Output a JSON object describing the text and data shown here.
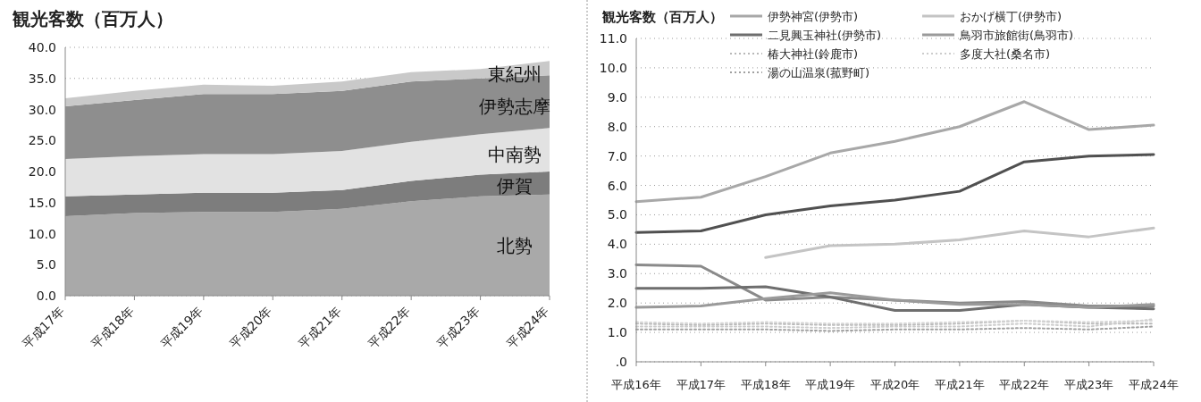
{
  "chart_data": [
    {
      "type": "area",
      "stacked": true,
      "title": "観光客数（百万人）",
      "categories": [
        "平成17年",
        "平成18年",
        "平成19年",
        "平成20年",
        "平成21年",
        "平成22年",
        "平成23年",
        "平成24年"
      ],
      "series": [
        {
          "name": "北勢",
          "color": "#a9a9a9",
          "values": [
            12.8,
            13.3,
            13.5,
            13.5,
            14.0,
            15.2,
            16.0,
            16.3
          ]
        },
        {
          "name": "伊賀",
          "color": "#7d7d7d",
          "values": [
            3.2,
            3.0,
            3.1,
            3.1,
            3.0,
            3.3,
            3.5,
            3.7
          ]
        },
        {
          "name": "中南勢",
          "color": "#e2e2e2",
          "values": [
            6.0,
            6.2,
            6.2,
            6.2,
            6.3,
            6.3,
            6.5,
            7.0
          ]
        },
        {
          "name": "伊勢志摩",
          "color": "#8e8e8e",
          "values": [
            8.5,
            9.0,
            9.7,
            9.7,
            9.7,
            9.7,
            9.0,
            8.5
          ]
        },
        {
          "name": "東紀州",
          "color": "#c9c9c9",
          "values": [
            1.3,
            1.5,
            1.5,
            1.3,
            1.5,
            1.5,
            1.5,
            2.3
          ]
        }
      ],
      "ylim": [
        0,
        40
      ],
      "yticks": [
        {
          "value": 0,
          "label": "0.0"
        },
        {
          "value": 5,
          "label": "5.0"
        },
        {
          "value": 10,
          "label": "10.0"
        },
        {
          "value": 15,
          "label": "15.0"
        },
        {
          "value": 20,
          "label": "20.0"
        },
        {
          "value": 25,
          "label": "25.0"
        },
        {
          "value": 30,
          "label": "30.0"
        },
        {
          "value": 35,
          "label": "35.0"
        },
        {
          "value": 40,
          "label": "40.0"
        }
      ],
      "grid": "y"
    },
    {
      "type": "line",
      "title": "観光客数（百万人）",
      "categories": [
        "平成16年",
        "平成17年",
        "平成18年",
        "平成19年",
        "平成20年",
        "平成21年",
        "平成22年",
        "平成23年",
        "平成24年"
      ],
      "series": [
        {
          "name": "伊勢神宮(伊勢市)",
          "color": "#a8a8a8",
          "line_style": "solid",
          "values": [
            5.45,
            5.6,
            6.3,
            7.1,
            7.5,
            8.0,
            8.85,
            7.9,
            8.05
          ]
        },
        {
          "color": "#505050",
          "line_style": "solid",
          "values": [
            4.4,
            4.45,
            5.0,
            5.3,
            5.5,
            5.8,
            6.8,
            7.0,
            7.05
          ]
        },
        {
          "name": "おかげ横丁(伊勢市)",
          "color": "#c4c4c4",
          "line_style": "solid",
          "values": [
            null,
            null,
            3.55,
            3.95,
            4.0,
            4.15,
            4.45,
            4.25,
            4.55
          ]
        },
        {
          "color": "#8a8a8a",
          "line_style": "solid",
          "values": [
            3.3,
            3.25,
            2.1,
            2.2,
            2.1,
            2.0,
            2.05,
            1.9,
            1.9
          ]
        },
        {
          "name": "二見興玉神社(伊勢市)",
          "color": "#6e6e6e",
          "line_style": "solid",
          "values": [
            2.5,
            2.5,
            2.55,
            2.2,
            1.75,
            1.75,
            1.95,
            1.85,
            1.8
          ]
        },
        {
          "name": "鳥羽市旅館街(鳥羽市)",
          "color": "#9a9a9a",
          "line_style": "solid",
          "values": [
            1.85,
            1.9,
            2.15,
            2.35,
            2.1,
            1.95,
            1.95,
            1.85,
            1.95
          ]
        },
        {
          "name": "椿大神社(鈴鹿市)",
          "color": "#b8b8b8",
          "line_style": "dotted",
          "values": [
            1.3,
            1.25,
            1.3,
            1.25,
            1.25,
            1.3,
            1.4,
            1.3,
            1.3
          ]
        },
        {
          "name": "多度大社(桑名市)",
          "color": "#cccccc",
          "line_style": "dotted",
          "values": [
            1.2,
            1.2,
            1.2,
            1.15,
            1.2,
            1.2,
            1.3,
            1.2,
            1.45
          ]
        },
        {
          "color": "#d6d6d6",
          "line_style": "dotted",
          "values": [
            1.35,
            1.3,
            1.35,
            1.3,
            1.3,
            1.35,
            1.4,
            1.35,
            1.4
          ]
        },
        {
          "name": "湯の山温泉(菰野町)",
          "color": "#a0a0a0",
          "line_style": "dotted",
          "values": [
            1.1,
            1.1,
            1.1,
            1.05,
            1.1,
            1.1,
            1.15,
            1.1,
            1.2
          ]
        }
      ],
      "ylim": [
        0,
        11
      ],
      "yticks": [
        {
          "value": 0,
          "label": ".0"
        },
        {
          "value": 1,
          "label": "1.0"
        },
        {
          "value": 2,
          "label": "2.0"
        },
        {
          "value": 3,
          "label": "3.0"
        },
        {
          "value": 4,
          "label": "4.0"
        },
        {
          "value": 5,
          "label": "5.0"
        },
        {
          "value": 6,
          "label": "6.0"
        },
        {
          "value": 7,
          "label": "7.0"
        },
        {
          "value": 8,
          "label": "8.0"
        },
        {
          "value": 9,
          "label": "9.0"
        },
        {
          "value": 10,
          "label": "10.0"
        },
        {
          "value": 11,
          "label": "11.0"
        }
      ],
      "grid": "y",
      "legend": "top"
    }
  ]
}
